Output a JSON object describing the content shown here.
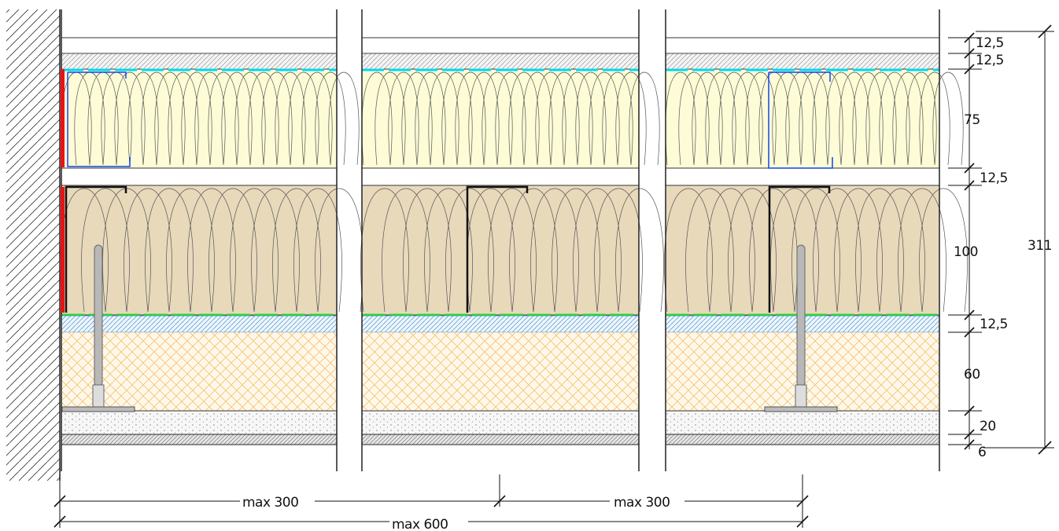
{
  "section_dimensions": {
    "layer_1": "12,5",
    "layer_2": "12,5",
    "layer_3": "75",
    "layer_4": "12,5",
    "layer_5": "100",
    "layer_6": "12,5",
    "layer_7": "60",
    "layer_8": "20",
    "layer_9": "6",
    "total": "311"
  },
  "span_dimensions": {
    "first_span": "max 300",
    "second_span": "max 300",
    "overall_span": "max 600"
  },
  "colors": {
    "upper_insulation_fill": "#fdfcd6",
    "lower_insulation_fill": "#e8d9bb",
    "screed_hatch": "#f2c26e",
    "vapour_line": "#00d8f0",
    "membrane_line": "#22dd22",
    "perimeter_strip": "#ee1111",
    "profile_outline": "#1144ee",
    "hanger_rod": "#b8b8b8"
  }
}
